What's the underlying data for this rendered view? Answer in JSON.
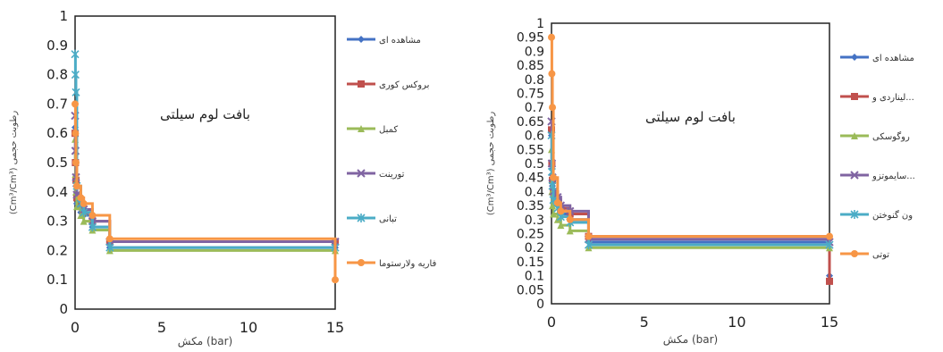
{
  "chart_data": [
    {
      "type": "line",
      "annotation": "بافت لوم سیلتی",
      "ylabel": "(Cm³/Cm³) رطوبت حجمی",
      "xlabel": "مکش (bar)",
      "xlim": [
        0,
        15
      ],
      "ylim": [
        0,
        1
      ],
      "xticks": [
        "0",
        "5",
        "10",
        "15"
      ],
      "yticks": [
        "0",
        "0.1",
        "0.2",
        "0.3",
        "0.4",
        "0.5",
        "0.6",
        "0.7",
        "0.8",
        "0.9",
        "1"
      ],
      "legend_position": "right",
      "grid": false,
      "series": [
        {
          "name": "مشاهده ای",
          "color": "#4472c4",
          "marker": "diamond",
          "x": [
            0,
            0.02,
            0.05,
            0.1,
            0.33,
            0.5,
            1,
            2,
            15
          ],
          "y": [
            0.62,
            0.5,
            0.42,
            0.36,
            0.33,
            0.32,
            0.28,
            0.21,
            0.21
          ]
        },
        {
          "name": "بروکس کوری",
          "color": "#c0504d",
          "marker": "square",
          "x": [
            0,
            0.02,
            0.05,
            0.1,
            0.33,
            0.5,
            1,
            2,
            15
          ],
          "y": [
            0.6,
            0.5,
            0.44,
            0.38,
            0.35,
            0.33,
            0.3,
            0.23,
            0.23
          ]
        },
        {
          "name": "کمبل",
          "color": "#9bbb59",
          "marker": "triangle",
          "x": [
            0,
            0.02,
            0.05,
            0.1,
            0.33,
            0.5,
            1,
            2,
            15
          ],
          "y": [
            0.58,
            0.46,
            0.4,
            0.35,
            0.32,
            0.3,
            0.27,
            0.2,
            0.2
          ]
        },
        {
          "name": "تورینت",
          "color": "#8064a2",
          "marker": "x",
          "x": [
            0,
            0.02,
            0.05,
            0.1,
            0.33,
            0.5,
            1,
            2,
            15
          ],
          "y": [
            0.66,
            0.54,
            0.45,
            0.39,
            0.36,
            0.34,
            0.3,
            0.23,
            0.23
          ]
        },
        {
          "name": "تبانی",
          "color": "#4bacc6",
          "marker": "star",
          "x": [
            0,
            0.02,
            0.05,
            0.1,
            0.33,
            0.5,
            1,
            2,
            15
          ],
          "y": [
            0.87,
            0.8,
            0.74,
            0.42,
            0.36,
            0.33,
            0.28,
            0.21,
            0.21
          ]
        },
        {
          "name": "فاریه ولارستوما",
          "color": "#f79646",
          "marker": "circle",
          "x": [
            0,
            0.02,
            0.05,
            0.1,
            0.33,
            0.5,
            1,
            2,
            15
          ],
          "y": [
            0.7,
            0.6,
            0.5,
            0.42,
            0.38,
            0.36,
            0.32,
            0.24,
            0.1
          ]
        }
      ]
    },
    {
      "type": "line",
      "annotation": "بافت لوم سیلتی",
      "ylabel": "(Cm³/Cm³) رطوبت حجمی",
      "xlabel": "مکش (bar)",
      "xlim": [
        0,
        15
      ],
      "ylim": [
        0,
        1
      ],
      "xticks": [
        "0",
        "5",
        "10",
        "15"
      ],
      "yticks": [
        "0",
        "0.05",
        "0.1",
        "0.15",
        "0.2",
        "0.25",
        "0.3",
        "0.35",
        "0.4",
        "0.45",
        "0.5",
        "0.55",
        "0.6",
        "0.65",
        "0.7",
        "0.75",
        "0.8",
        "0.85",
        "0.9",
        "0.95",
        "1"
      ],
      "legend_position": "right",
      "grid": false,
      "series": [
        {
          "name": "مشاهده ای",
          "color": "#4472c4",
          "marker": "diamond",
          "x": [
            0,
            0.02,
            0.05,
            0.1,
            0.33,
            0.5,
            1,
            2,
            15
          ],
          "y": [
            0.6,
            0.48,
            0.42,
            0.38,
            0.35,
            0.32,
            0.3,
            0.22,
            0.1
          ]
        },
        {
          "name": "لیناردی و...",
          "color": "#c0504d",
          "marker": "square",
          "x": [
            0,
            0.02,
            0.05,
            0.1,
            0.33,
            0.5,
            1,
            2,
            15
          ],
          "y": [
            0.62,
            0.5,
            0.44,
            0.4,
            0.37,
            0.34,
            0.32,
            0.24,
            0.08
          ]
        },
        {
          "name": "روگوسکی",
          "color": "#9bbb59",
          "marker": "triangle",
          "x": [
            0,
            0.02,
            0.05,
            0.1,
            0.33,
            0.5,
            1,
            2,
            15
          ],
          "y": [
            0.55,
            0.4,
            0.35,
            0.32,
            0.3,
            0.28,
            0.26,
            0.2,
            0.2
          ]
        },
        {
          "name": "سایموتزو...",
          "color": "#8064a2",
          "marker": "x",
          "x": [
            0,
            0.02,
            0.05,
            0.1,
            0.33,
            0.5,
            1,
            2,
            15
          ],
          "y": [
            0.65,
            0.5,
            0.45,
            0.4,
            0.38,
            0.35,
            0.33,
            0.23,
            0.22
          ]
        },
        {
          "name": "ون گنوختن",
          "color": "#4bacc6",
          "marker": "star",
          "x": [
            0,
            0.02,
            0.05,
            0.1,
            0.33,
            0.5,
            1,
            2,
            15
          ],
          "y": [
            0.6,
            0.47,
            0.42,
            0.37,
            0.34,
            0.31,
            0.29,
            0.21,
            0.21
          ]
        },
        {
          "name": "توتی",
          "color": "#f79646",
          "marker": "circle",
          "x": [
            0,
            0.02,
            0.05,
            0.1,
            0.33,
            0.5,
            1,
            2,
            15
          ],
          "y": [
            0.95,
            0.82,
            0.7,
            0.45,
            0.36,
            0.33,
            0.3,
            0.24,
            0.24
          ]
        }
      ]
    }
  ]
}
